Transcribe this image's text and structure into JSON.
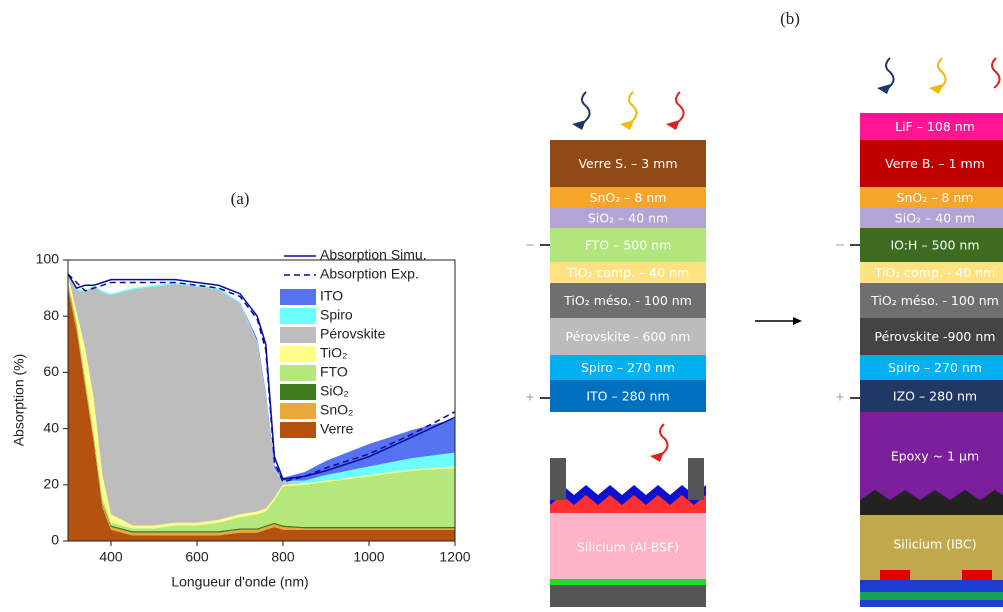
{
  "chart_data": {
    "type": "stacked_area",
    "panel": "(a)",
    "xlabel": "Longueur d'onde (nm)",
    "ylabel": "Absorption (%)",
    "x": [
      300,
      320,
      340,
      360,
      380,
      400,
      450,
      500,
      550,
      600,
      650,
      700,
      740,
      760,
      780,
      800,
      850,
      900,
      1000,
      1100,
      1200
    ],
    "xlim": [
      300,
      1200
    ],
    "xticks": [
      400,
      600,
      800,
      1000,
      1200
    ],
    "ylim": [
      0,
      100
    ],
    "yticks": [
      0,
      20,
      40,
      60,
      80,
      100
    ],
    "lines": [
      {
        "name": "Absorption Simu.",
        "color": "#0a0a9a",
        "dashed": false,
        "values": [
          95,
          90,
          91,
          91,
          92,
          93,
          93,
          93,
          93,
          92,
          91,
          88,
          80,
          70,
          30,
          22,
          23,
          25,
          30,
          37,
          44
        ]
      },
      {
        "name": "Absorption Exp.",
        "color": "#0a0a9a",
        "dashed": true,
        "values": [
          95,
          92,
          89,
          90,
          91,
          92,
          92,
          92,
          92,
          91,
          90,
          87,
          79,
          68,
          28,
          21,
          23,
          26,
          31,
          38,
          46
        ]
      }
    ],
    "series": [
      {
        "name": "Verre",
        "color": "#b5520f",
        "values": [
          90,
          75,
          55,
          35,
          12,
          4,
          2,
          2,
          2,
          2,
          2,
          3,
          3,
          4,
          5,
          4,
          4,
          4,
          4,
          4,
          4
        ]
      },
      {
        "name": "SnO₂",
        "color": "#e8a83a",
        "values": [
          1,
          1,
          1,
          1,
          1,
          1,
          1,
          1,
          1,
          1,
          1,
          1,
          1,
          1,
          1,
          1,
          0.5,
          0.5,
          0.5,
          0.5,
          0.5
        ]
      },
      {
        "name": "SiO₂",
        "color": "#3f7a1c",
        "values": [
          0.5,
          0.5,
          0.5,
          0.5,
          0.5,
          0.5,
          0.5,
          0.5,
          0.5,
          0.5,
          0.5,
          0.5,
          0.5,
          0.5,
          0.5,
          0.5,
          0.5,
          0.5,
          0.5,
          0.5,
          0.5
        ]
      },
      {
        "name": "FTO",
        "color": "#b5e87a",
        "values": [
          1,
          2,
          2,
          2,
          2,
          1,
          1,
          1,
          2,
          2,
          3,
          4,
          5,
          5,
          8,
          14,
          15,
          16,
          18,
          20,
          21
        ]
      },
      {
        "name": "TiO₂",
        "color": "#ffff88",
        "values": [
          2,
          3,
          10,
          12,
          8,
          3,
          1,
          1,
          1,
          1,
          1,
          1,
          1,
          1,
          1,
          0.5,
          0.5,
          0.5,
          0.5,
          0.5,
          0.5
        ]
      },
      {
        "name": "Pérovskite",
        "color": "#bdbdbd",
        "values": [
          0,
          8,
          20,
          40,
          65,
          78,
          84,
          85,
          85,
          84,
          82,
          75,
          60,
          40,
          10,
          1,
          0,
          0,
          0,
          0,
          0
        ]
      },
      {
        "name": "Spiro",
        "color": "#6cffff",
        "values": [
          0.5,
          0.5,
          0.5,
          0.5,
          0.5,
          0.5,
          0.5,
          0.5,
          0.5,
          0.5,
          0.5,
          0.5,
          0.5,
          0.5,
          0.5,
          0.5,
          1,
          2,
          3,
          4,
          5
        ]
      },
      {
        "name": "ITO",
        "color": "#5572f0",
        "values": [
          0,
          0,
          0,
          0,
          0,
          0,
          0,
          0,
          0,
          0,
          0,
          0,
          1,
          1,
          1,
          1,
          3,
          5,
          8,
          10,
          12
        ]
      }
    ]
  },
  "diagram": {
    "panel": "(b)",
    "left": {
      "layers": [
        "Verre S. – 3 mm",
        "SnO₂ – 8 nm",
        "SiO₂ – 40 nm",
        "FTO – 500 nm",
        "TiO₂ comp. – 40 nm",
        "TiO₂ méso. - 100 nm",
        "Pérovskite - 600 nm",
        "Spiro – 270 nm",
        "ITO – 280 nm"
      ],
      "cell": "Silicium (Al-BSF)",
      "minus": "–",
      "plus": "+"
    },
    "right": {
      "layers": [
        "LiF – 108 nm",
        "Verre B.  – 1 mm",
        "SnO₂ – 8 nm",
        "SiO₂ – 40 nm",
        "IO:H – 500 nm",
        "TiO₂ comp. - 40 nm",
        "TiO₂ méso. - 100 nm",
        "Pérovskite -900 nm",
        "Spiro – 270 nm",
        "IZO  – 280 nm",
        "Epoxy ~ 1 µm"
      ],
      "cell": "Silicium (IBC)",
      "minus": "–",
      "plus": "+"
    }
  }
}
